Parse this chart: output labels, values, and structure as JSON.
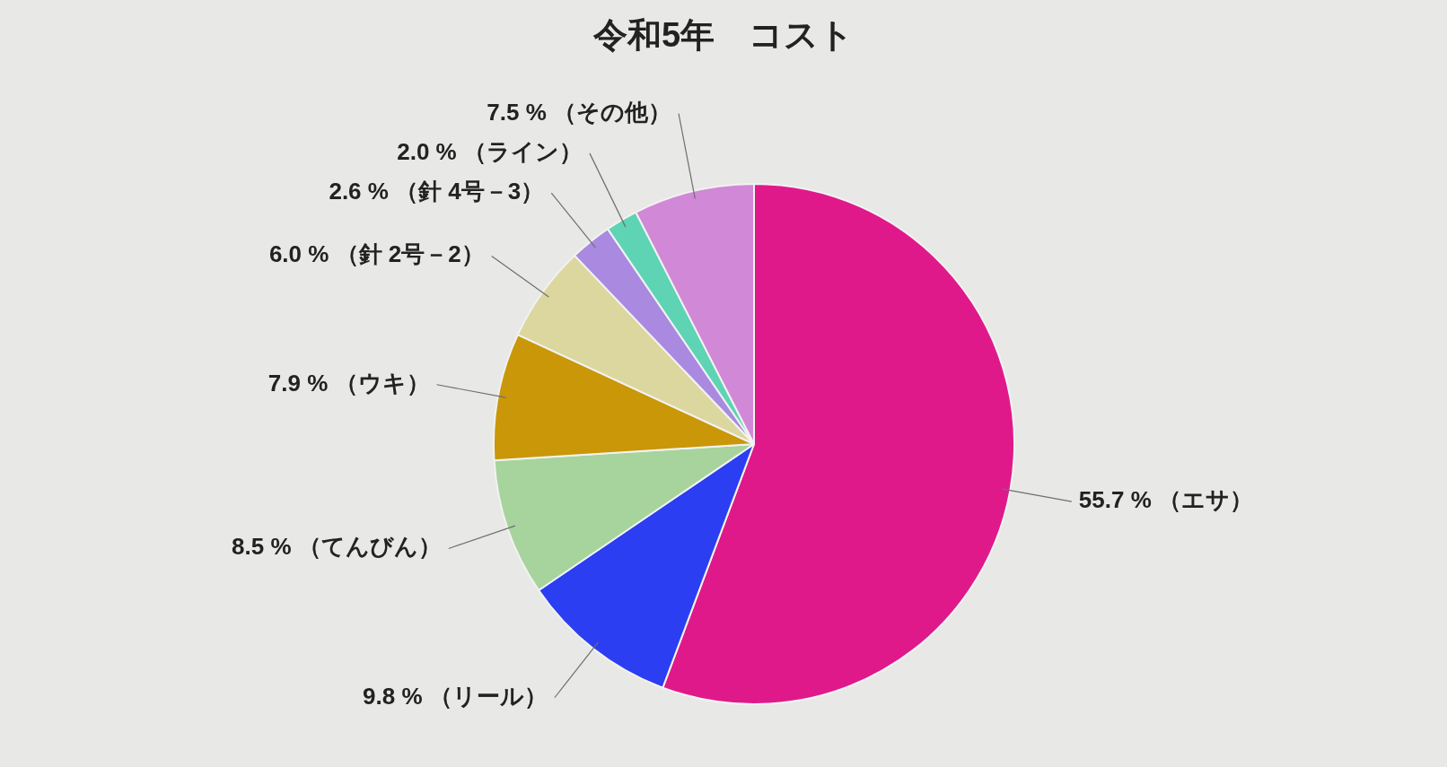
{
  "chart_data": {
    "type": "pie",
    "title": "令和5年　コスト",
    "categories": [
      "（エサ）",
      "（リール）",
      "（てんびん）",
      "（ウキ）",
      "（針 2号－2）",
      "（針 4号－3）",
      "（ライン）",
      "（その他）"
    ],
    "values": [
      55.7,
      9.8,
      8.5,
      7.9,
      6.0,
      2.6,
      2.0,
      7.5
    ],
    "value_labels": [
      "55.7 %",
      "9.8 %",
      "8.5 %",
      "7.9 %",
      "6.0 %",
      "2.6 %",
      "2.0 %",
      "7.5 %"
    ],
    "colors": [
      "#e0198a",
      "#2b3ef2",
      "#a6d49c",
      "#c99708",
      "#dcd79e",
      "#a98ae0",
      "#5ed4b4",
      "#d188d6"
    ],
    "legend": false
  }
}
